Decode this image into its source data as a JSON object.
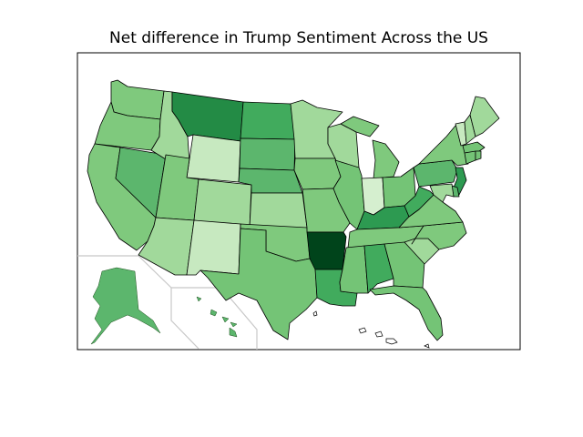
{
  "title": "Net difference in Trump Sentiment Across the US",
  "chart_data": {
    "type": "choropleth",
    "title": "Net difference in Trump Sentiment Across the US",
    "colormap": "Greens",
    "legend": "none",
    "palette": {
      "1": "#d5efcf",
      "2": "#c7e9c0",
      "3": "#a1d99b",
      "4": "#7fc97d",
      "5": "#74c476",
      "6": "#5cb66d",
      "7": "#41ab5d",
      "8": "#2d9a51",
      "9": "#238b45",
      "10": "#00441b"
    },
    "levels": {
      "WA": 4,
      "OR": 4,
      "CA": 4,
      "NV": 6,
      "ID": 3,
      "MT": 9,
      "WY": 2,
      "UT": 4,
      "AZ": 3,
      "CO": 3,
      "NM": 2,
      "ND": 7,
      "SD": 6,
      "NE": 6,
      "KS": 3,
      "OK": 4,
      "TX": 5,
      "MN": 3,
      "IA": 4,
      "MO": 4,
      "AR": 10,
      "LA": 7,
      "WI": 3,
      "IL": 5,
      "MI": 4,
      "IN": 1,
      "OH": 5,
      "KY": 8,
      "TN": 4,
      "MS": 5,
      "AL": 7,
      "GA": 5,
      "FL": 5,
      "SC": 3,
      "NC": 4,
      "VA": 4,
      "WV": 7,
      "PA": 6,
      "NY": 4,
      "VT": 2,
      "NH": 3,
      "ME": 3,
      "MA": 5,
      "CT": 5,
      "RI": 5,
      "NJ": 8,
      "DE": 6,
      "MD": 3,
      "AK": 6,
      "HI": 6
    }
  }
}
